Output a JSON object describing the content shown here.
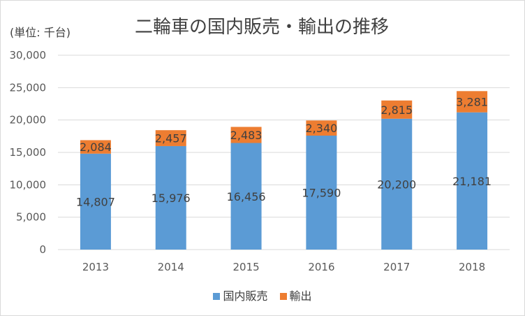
{
  "chart_data": {
    "type": "bar",
    "stacked": true,
    "title": "二輪車の国内販売・輸出の推移",
    "unit_label": "(単位: 千台)",
    "categories": [
      "2013",
      "2014",
      "2015",
      "2016",
      "2017",
      "2018"
    ],
    "series": [
      {
        "name": "国内販売",
        "color": "#5b9bd5",
        "values": [
          14807,
          15976,
          16456,
          17590,
          20200,
          21181
        ],
        "labels": [
          "14,807",
          "15,976",
          "16,456",
          "17,590",
          "20,200",
          "21,181"
        ]
      },
      {
        "name": "輸出",
        "color": "#ed7d31",
        "values": [
          2084,
          2457,
          2483,
          2340,
          2815,
          3281
        ],
        "labels": [
          "2,084",
          "2,457",
          "2,483",
          "2,340",
          "2,815",
          "3,281"
        ]
      }
    ],
    "yticks": [
      0,
      5000,
      10000,
      15000,
      20000,
      25000,
      30000
    ],
    "ytick_labels": [
      "0",
      "5,000",
      "10,000",
      "15,000",
      "20,000",
      "25,000",
      "30,000"
    ],
    "ylim": [
      0,
      30000
    ],
    "grid": true,
    "legend": "bottom"
  }
}
